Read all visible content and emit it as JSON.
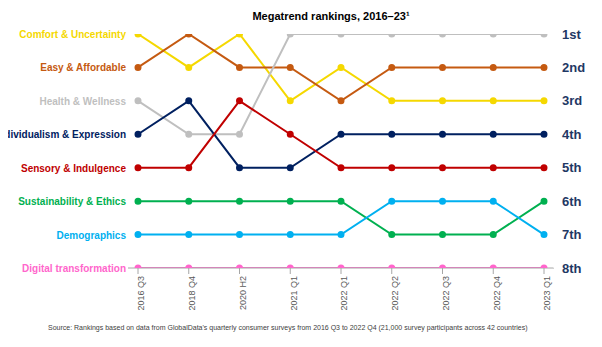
{
  "chart_data": {
    "type": "line",
    "title": "Megatrend rankings, 2016–23¹",
    "source": "Source: Rankings based on data from GlobalData's quarterly consumer surveys from 2016 Q3 to 2022 Q4 (21,000 survey participants across 42 countries)",
    "categories": [
      "2016 Q3",
      "2018 Q4",
      "2020 H2",
      "2021 Q1",
      "2022 Q1",
      "2022 Q2",
      "2022 Q3",
      "2022 Q4",
      "2023 Q1"
    ],
    "ylim": [
      1,
      8
    ],
    "yticks": [
      {
        "value": 1,
        "label": "1st"
      },
      {
        "value": 2,
        "label": "2nd"
      },
      {
        "value": 3,
        "label": "3rd"
      },
      {
        "value": 4,
        "label": "4th"
      },
      {
        "value": 5,
        "label": "5th"
      },
      {
        "value": 6,
        "label": "6th"
      },
      {
        "value": 7,
        "label": "7th"
      },
      {
        "value": 8,
        "label": "8th"
      }
    ],
    "grid": false,
    "marker": "circle",
    "series": [
      {
        "name": "Comfort & Uncertainty",
        "color": "#F5D800",
        "values": [
          1,
          2,
          1,
          3,
          2,
          3,
          3,
          3,
          3
        ]
      },
      {
        "name": "Easy & Affordable",
        "color": "#C55A11",
        "values": [
          2,
          1,
          2,
          2,
          3,
          2,
          2,
          2,
          2
        ]
      },
      {
        "name": "Health & Wellness",
        "color": "#BFBFBF",
        "values": [
          3,
          4,
          4,
          1,
          1,
          1,
          1,
          1,
          1
        ]
      },
      {
        "name": "Individualism & Expression",
        "color": "#002060",
        "values": [
          4,
          3,
          5,
          5,
          4,
          4,
          4,
          4,
          4
        ]
      },
      {
        "name": "Sensory & Indulgence",
        "color": "#C00000",
        "values": [
          5,
          5,
          3,
          4,
          5,
          5,
          5,
          5,
          5
        ]
      },
      {
        "name": "Sustainability & Ethics",
        "color": "#00B050",
        "values": [
          6,
          6,
          6,
          6,
          6,
          7,
          7,
          7,
          6
        ]
      },
      {
        "name": "Demographics",
        "color": "#00B0F0",
        "values": [
          7,
          7,
          7,
          7,
          7,
          6,
          6,
          6,
          7
        ]
      },
      {
        "name": "Digital transformation",
        "color": "#FF66CC",
        "values": [
          8,
          8,
          8,
          8,
          8,
          8,
          8,
          8,
          8
        ]
      }
    ]
  }
}
